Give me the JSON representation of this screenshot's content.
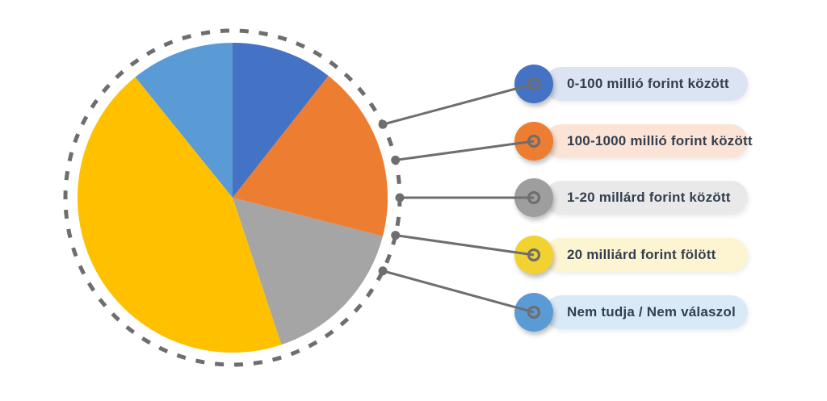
{
  "chart_data": {
    "type": "pie",
    "title": "",
    "legend_position": "right",
    "start_angle_deg": 0,
    "direction": "clockwise",
    "value_note": "percent estimated from measured slice angles; no numeric labels shown in image",
    "categories": [
      "0-100 millió forint között",
      "100-1000 millió forint között",
      "1-20 millárd forint között",
      "20 milliárd forint fölött",
      "Nem tudja / Nem válaszol"
    ],
    "slices": [
      {
        "label": "0-100 millió forint között",
        "value_pct": 10.6,
        "color": "#4472C4",
        "swatch_color": "#4472C4",
        "pill_color": "#DCE4F4"
      },
      {
        "label": "100-1000 millió forint között",
        "value_pct": 18.4,
        "color": "#ED7D31",
        "swatch_color": "#ED7D31",
        "pill_color": "#FBE4D5"
      },
      {
        "label": "1-20 millárd forint között",
        "value_pct": 15.9,
        "color": "#A5A5A5",
        "swatch_color": "#9E9E9E",
        "pill_color": "#E9E9E9"
      },
      {
        "label": "20 milliárd forint fölött",
        "value_pct": 44.3,
        "color": "#FFC000",
        "swatch_color": "#F2D230",
        "pill_color": "#FDF5D2"
      },
      {
        "label": "Nem tudja / Nem válaszol",
        "value_pct": 10.8,
        "color": "#5B9BD5",
        "swatch_color": "#5B9BD5",
        "pill_color": "#D8E9F7"
      }
    ],
    "decor": {
      "dashed_outline_color": "#6E6E6E",
      "connector_color": "#6E6E6E",
      "label_text_color": "#333F50",
      "background_color": "#FFFFFF"
    }
  }
}
